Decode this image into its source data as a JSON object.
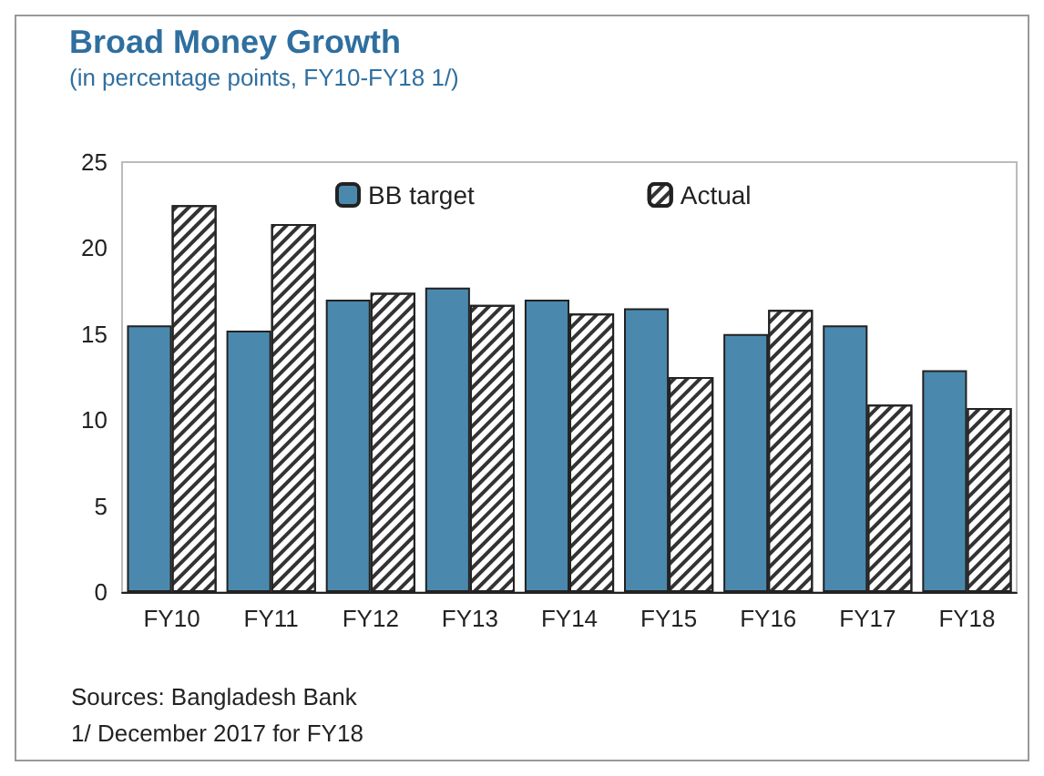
{
  "chart_data": {
    "type": "bar",
    "title": "Broad Money Growth",
    "subtitle": "(in percentage points, FY10-FY18 1/)",
    "categories": [
      "FY10",
      "FY11",
      "FY12",
      "FY13",
      "FY14",
      "FY15",
      "FY16",
      "FY17",
      "FY18"
    ],
    "series": [
      {
        "name": "BB target",
        "color": "#4a89ad",
        "values": [
          15.5,
          15.2,
          17.0,
          17.7,
          17.0,
          16.5,
          15.0,
          15.5,
          12.9
        ]
      },
      {
        "name": "Actual",
        "color": "#ffffff",
        "values": [
          22.5,
          21.4,
          17.4,
          16.7,
          16.2,
          12.5,
          16.4,
          10.9,
          10.7
        ]
      }
    ],
    "ylim": [
      0,
      25
    ],
    "yticks": [
      0,
      5,
      10,
      15,
      20,
      25
    ],
    "grid": false,
    "legend": "top",
    "annotations": [
      "Sources: Bangladesh Bank",
      "1/ December 2017 for FY18"
    ]
  }
}
